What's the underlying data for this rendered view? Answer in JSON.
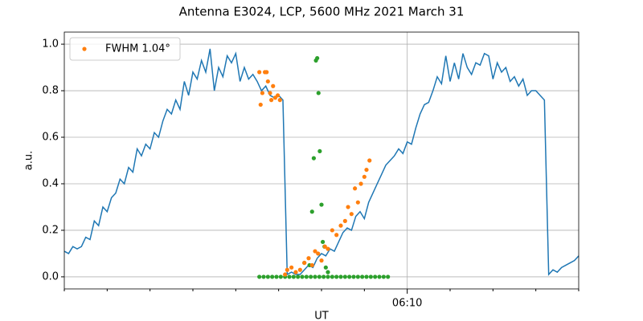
{
  "chart_data": {
    "type": "line",
    "title": "Antenna E3024, LCP, 5600 MHz 2021 March 31",
    "xlabel": "UT",
    "ylabel": "a.u.",
    "xlim": [
      362,
      374
    ],
    "xticks": [
      {
        "value": 370,
        "label": "06:10"
      }
    ],
    "xminorticks": [
      362,
      363,
      364,
      365,
      366,
      367,
      368,
      369,
      371,
      372,
      373,
      374
    ],
    "ylim": [
      -0.052,
      1.052
    ],
    "yticks": [
      {
        "value": 0,
        "label": "0.0"
      },
      0.2,
      0.4,
      0.6,
      0.8,
      {
        "value": 1,
        "label": "1.0"
      }
    ],
    "grid": true,
    "legend": "upper left",
    "series": [
      {
        "mark": "line",
        "color": "#1f77b4",
        "x": [
          362.0,
          362.1,
          362.2,
          362.3,
          362.4,
          362.5,
          362.6,
          362.7,
          362.8,
          362.9,
          363.0,
          363.1,
          363.2,
          363.3,
          363.4,
          363.5,
          363.6,
          363.7,
          363.8,
          363.9,
          364.0,
          364.1,
          364.2,
          364.3,
          364.4,
          364.5,
          364.6,
          364.7,
          364.8,
          364.9,
          365.0,
          365.1,
          365.2,
          365.3,
          365.4,
          365.5,
          365.6,
          365.7,
          365.8,
          365.9,
          366.0,
          366.1,
          366.2,
          366.3,
          366.4,
          366.5,
          366.6,
          366.7,
          366.8,
          366.9,
          367.0,
          367.1,
          367.2,
          367.3,
          367.4,
          367.5,
          367.6,
          367.7,
          367.8,
          367.9,
          368.0,
          368.1,
          368.2,
          368.3,
          368.4,
          368.5,
          368.6,
          368.7,
          368.8,
          368.9,
          369.0,
          369.1,
          369.2,
          369.3,
          369.4,
          369.5,
          369.6,
          369.7,
          369.8,
          369.9,
          370.0,
          370.1,
          370.2,
          370.3,
          370.4,
          370.5,
          370.6,
          370.7,
          370.8,
          370.9,
          371.0,
          371.1,
          371.2,
          371.3,
          371.4,
          371.5,
          371.6,
          371.7,
          371.8,
          371.9,
          372.0,
          372.1,
          372.2,
          372.3,
          372.4,
          372.5,
          372.6,
          372.7,
          372.8,
          372.9,
          373.0,
          373.1,
          373.2,
          373.3,
          373.4,
          373.5,
          373.6,
          373.7,
          373.8,
          373.9,
          374.0
        ],
        "values": [
          0.11,
          0.1,
          0.13,
          0.12,
          0.13,
          0.17,
          0.16,
          0.24,
          0.22,
          0.3,
          0.28,
          0.34,
          0.36,
          0.42,
          0.4,
          0.47,
          0.45,
          0.55,
          0.52,
          0.57,
          0.55,
          0.62,
          0.6,
          0.67,
          0.72,
          0.7,
          0.76,
          0.72,
          0.84,
          0.78,
          0.88,
          0.85,
          0.93,
          0.88,
          0.98,
          0.8,
          0.9,
          0.86,
          0.95,
          0.92,
          0.96,
          0.84,
          0.9,
          0.85,
          0.87,
          0.84,
          0.8,
          0.82,
          0.78,
          0.77,
          0.78,
          0.76,
          0.01,
          0.02,
          0.01,
          0.01,
          0.03,
          0.05,
          0.04,
          0.08,
          0.1,
          0.09,
          0.12,
          0.11,
          0.15,
          0.19,
          0.21,
          0.2,
          0.26,
          0.28,
          0.25,
          0.32,
          0.36,
          0.4,
          0.44,
          0.48,
          0.5,
          0.52,
          0.55,
          0.53,
          0.58,
          0.57,
          0.64,
          0.7,
          0.74,
          0.75,
          0.8,
          0.86,
          0.83,
          0.95,
          0.84,
          0.92,
          0.85,
          0.96,
          0.9,
          0.87,
          0.92,
          0.91,
          0.96,
          0.95,
          0.85,
          0.92,
          0.88,
          0.9,
          0.84,
          0.86,
          0.82,
          0.85,
          0.78,
          0.8,
          0.8,
          0.78,
          0.76,
          0.01,
          0.03,
          0.02,
          0.04,
          0.05,
          0.06,
          0.07,
          0.09
        ]
      },
      {
        "mark": "dot",
        "color": "#2ca02c",
        "x": [
          366.55,
          366.65,
          366.75,
          366.85,
          366.95,
          367.05,
          367.15,
          367.25,
          367.35,
          367.45,
          367.55,
          367.65,
          367.75,
          367.85,
          367.95,
          368.05,
          368.15,
          368.25,
          368.35,
          368.45,
          368.55,
          368.65,
          368.75,
          368.85,
          368.95,
          369.05,
          369.15,
          369.25,
          369.35,
          369.45,
          369.55,
          367.6,
          367.72,
          367.78,
          367.82,
          367.87,
          367.9,
          367.93,
          367.96,
          368.0,
          368.03,
          368.07,
          368.1,
          368.15
        ],
        "values": [
          0,
          0,
          0,
          0,
          0,
          0,
          0,
          0,
          0,
          0,
          0,
          0,
          0,
          0,
          0,
          0,
          0,
          0,
          0,
          0,
          0,
          0,
          0,
          0,
          0,
          0,
          0,
          0,
          0,
          0,
          0,
          0.06,
          0.05,
          0.28,
          0.51,
          0.93,
          0.94,
          0.79,
          0.54,
          0.31,
          0.15,
          0.13,
          0.04,
          0.02
        ]
      },
      {
        "mark": "dot",
        "name": "FWHM 1.04°",
        "color": "#ff7f0e",
        "x": [
          366.55,
          366.58,
          366.62,
          366.68,
          366.72,
          366.75,
          366.8,
          366.83,
          366.87,
          366.92,
          366.98,
          367.03,
          367.15,
          367.2,
          367.3,
          367.4,
          367.5,
          367.6,
          367.7,
          367.78,
          367.85,
          367.92,
          368.0,
          368.08,
          368.15,
          368.25,
          368.35,
          368.45,
          368.55,
          368.62,
          368.7,
          368.78,
          368.85,
          368.92,
          369.0,
          369.05,
          369.12
        ],
        "values": [
          0.88,
          0.74,
          0.79,
          0.88,
          0.88,
          0.84,
          0.79,
          0.76,
          0.82,
          0.77,
          0.78,
          0.76,
          0.01,
          0.03,
          0.04,
          0.02,
          0.03,
          0.06,
          0.08,
          0.05,
          0.11,
          0.1,
          0.07,
          0.13,
          0.12,
          0.2,
          0.18,
          0.22,
          0.24,
          0.3,
          0.27,
          0.38,
          0.32,
          0.4,
          0.43,
          0.46,
          0.5
        ]
      }
    ]
  }
}
